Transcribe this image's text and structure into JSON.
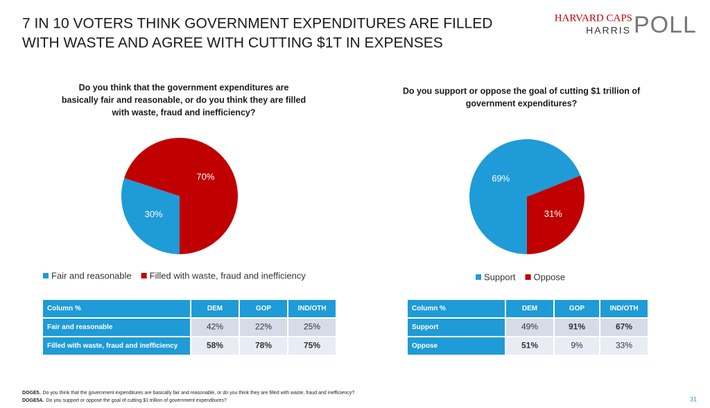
{
  "title": [
    "7 IN 10 VOTERS THINK GOVERNMENT EXPENDITURES ARE FILLED",
    "WITH WASTE AND AGREE WITH CUTTING $1T IN EXPENSES"
  ],
  "logo": {
    "top": "HARVARD CAPS",
    "middle": "HARRIS",
    "big": "POLL"
  },
  "chart_data": [
    {
      "type": "pie",
      "title": [
        "Do you think that the government expenditures are",
        "basically fair and reasonable, or do you think they are filled",
        "with waste, fraud and inefficiency?"
      ],
      "categories": [
        "Fair and reasonable",
        "Filled with waste, fraud and inefficiency"
      ],
      "values": [
        30,
        70
      ],
      "value_labels": [
        "30%",
        "70%"
      ],
      "colors": [
        "#1f9bd7",
        "#c00000"
      ]
    },
    {
      "type": "pie",
      "title": [
        "Do you support or oppose the goal of cutting $1 trillion of",
        "government expenditures?"
      ],
      "categories": [
        "Support",
        "Oppose"
      ],
      "values": [
        69,
        31
      ],
      "value_labels": [
        "69%",
        "31%"
      ],
      "colors": [
        "#1f9bd7",
        "#c00000"
      ]
    }
  ],
  "tables": [
    {
      "header": [
        "Column %",
        "DEM",
        "GOP",
        "IND/OTH"
      ],
      "rows": [
        [
          "Fair and reasonable",
          "42%",
          "22%",
          "25%"
        ],
        [
          "Filled with waste, fraud and inefficiency",
          "58%",
          "78%",
          "75%"
        ]
      ],
      "bold": [
        [
          false,
          false,
          false
        ],
        [
          true,
          true,
          true
        ]
      ]
    },
    {
      "header": [
        "Column %",
        "DEM",
        "GOP",
        "IND/OTH"
      ],
      "rows": [
        [
          "Support",
          "49%",
          "91%",
          "67%"
        ],
        [
          "Oppose",
          "51%",
          "9%",
          "33%"
        ]
      ],
      "bold": [
        [
          false,
          true,
          true
        ],
        [
          true,
          false,
          false
        ]
      ]
    }
  ],
  "footnotes": [
    {
      "code": "DOGE5.",
      "text": "Do you think that the government expenditures are basically fair and reasonable, or do you think they are filled with waste, fraud and inefficiency?"
    },
    {
      "code": "DOGE5A.",
      "text": "Do you support or oppose the goal of cutting $1 trillion of government expenditures?"
    }
  ],
  "page_number": "31"
}
